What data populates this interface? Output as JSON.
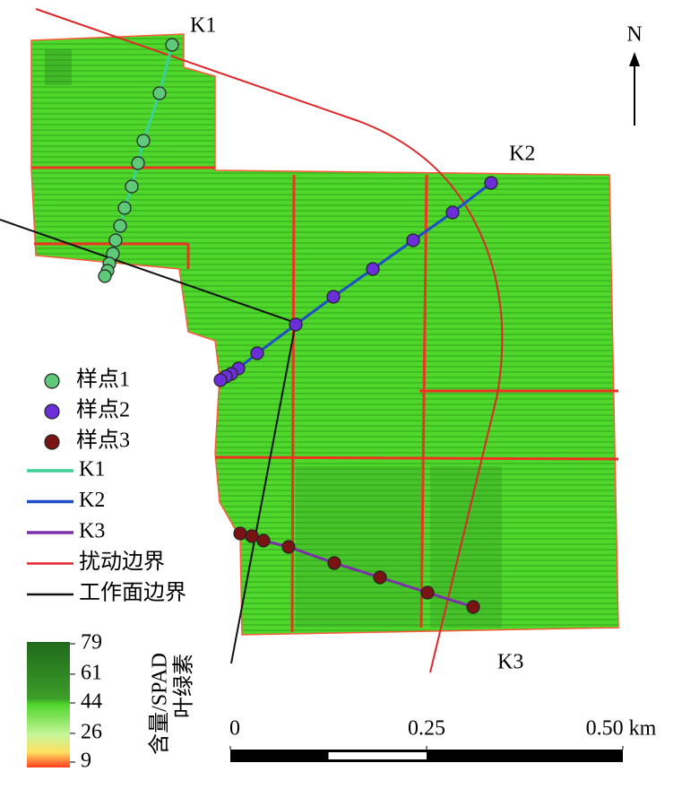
{
  "map": {
    "north": "N",
    "transects": [
      "K1",
      "K2",
      "K3"
    ],
    "legend": [
      {
        "label": "样点1",
        "color": "#5fc97a"
      },
      {
        "label": "样点2",
        "color": "#6a2fd8"
      },
      {
        "label": "样点3",
        "color": "#7a1414"
      },
      {
        "label": "K1",
        "color": "#3ccf9a"
      },
      {
        "label": "K2",
        "color": "#1f4fc8"
      },
      {
        "label": "K3",
        "color": "#7b2fa8"
      },
      {
        "label": "扰动边界",
        "color": "#e0262a"
      },
      {
        "label": "工作面边界",
        "color": "#111111"
      }
    ],
    "colorbar": {
      "title_lines": [
        "叶绿素",
        "含量/SPAD"
      ],
      "lim": [
        9,
        79
      ],
      "ticks": [
        79,
        61,
        44,
        26,
        9
      ]
    },
    "scale_bar": {
      "lim": [
        0,
        0.5
      ],
      "ticks": [
        0,
        0.25,
        {
          "value": 0.5,
          "label": "0.50 km"
        }
      ]
    }
  }
}
